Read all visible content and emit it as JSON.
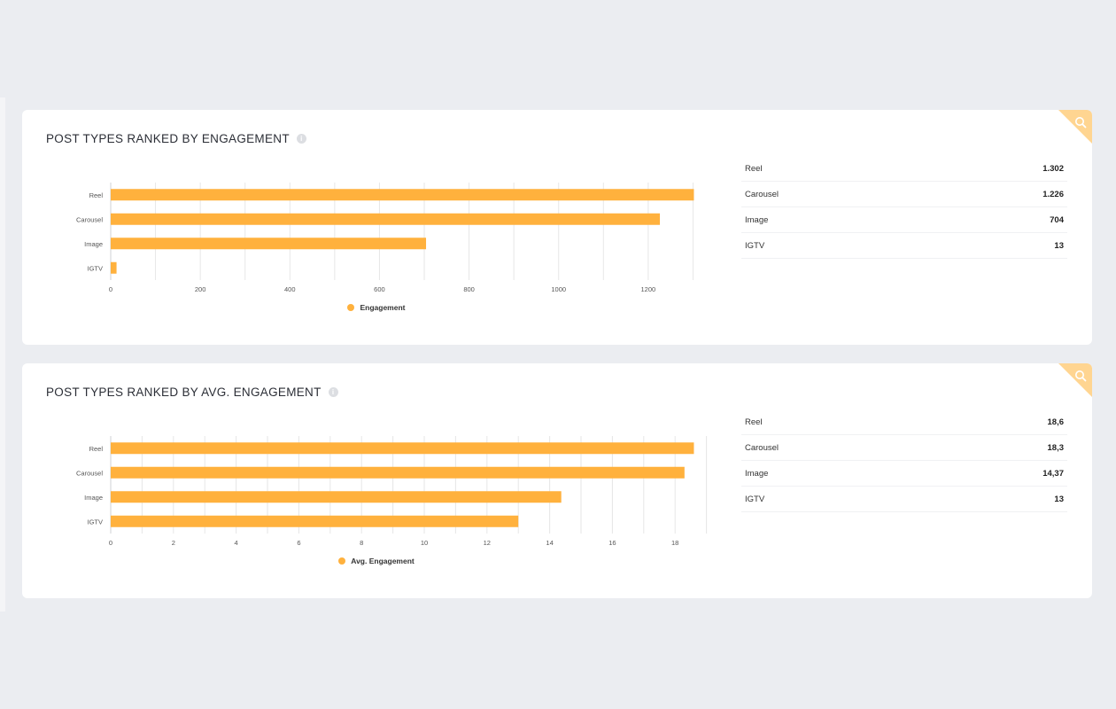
{
  "colors": {
    "bar": "#ffb13d",
    "corner": "#ffd591",
    "grid": "#e6e6e6"
  },
  "cards": [
    {
      "title": "POST TYPES RANKED BY ENGAGEMENT",
      "table": [
        {
          "label": "Reel",
          "value": "1.302"
        },
        {
          "label": "Carousel",
          "value": "1.226"
        },
        {
          "label": "Image",
          "value": "704"
        },
        {
          "label": "IGTV",
          "value": "13"
        }
      ]
    },
    {
      "title": "POST TYPES RANKED BY AVG. ENGAGEMENT",
      "table": [
        {
          "label": "Reel",
          "value": "18,6"
        },
        {
          "label": "Carousel",
          "value": "18,3"
        },
        {
          "label": "Image",
          "value": "14,37"
        },
        {
          "label": "IGTV",
          "value": "13"
        }
      ]
    }
  ],
  "chart_data": [
    {
      "type": "bar",
      "orientation": "horizontal",
      "categories": [
        "Reel",
        "Carousel",
        "Image",
        "IGTV"
      ],
      "series": [
        {
          "name": "Engagement",
          "values": [
            1302,
            1226,
            704,
            13
          ]
        }
      ],
      "xlim": [
        0,
        1400
      ],
      "xticks": [
        0,
        200,
        400,
        600,
        800,
        1000,
        1200,
        1400
      ],
      "grid": true,
      "legend": "bottom-center"
    },
    {
      "type": "bar",
      "orientation": "horizontal",
      "categories": [
        "Reel",
        "Carousel",
        "Image",
        "IGTV"
      ],
      "series": [
        {
          "name": "Avg. Engagement",
          "values": [
            18.6,
            18.3,
            14.37,
            13
          ]
        }
      ],
      "xlim": [
        0,
        20
      ],
      "xticks": [
        0,
        2,
        4,
        6,
        8,
        10,
        12,
        14,
        16,
        18,
        20
      ],
      "grid": true,
      "legend": "bottom-center"
    }
  ]
}
